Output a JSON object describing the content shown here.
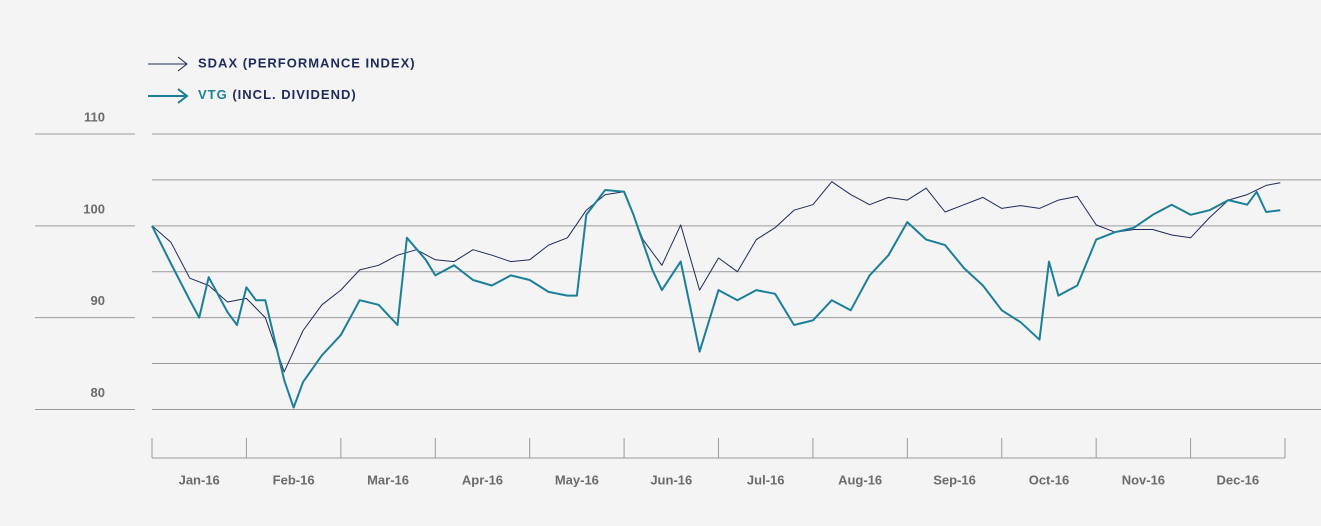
{
  "chart_data": {
    "type": "line",
    "categories": [
      "Jan-16",
      "Feb-16",
      "Mar-16",
      "Apr-16",
      "May-16",
      "Jun-16",
      "Jul-16",
      "Aug-16",
      "Sep-16",
      "Oct-16",
      "Nov-16",
      "Dec-16"
    ],
    "xlim": [
      0,
      12
    ],
    "xticks": [
      0,
      1,
      2,
      3,
      4,
      5,
      6,
      7,
      8,
      9,
      10,
      11,
      12
    ],
    "ylim": [
      77,
      110
    ],
    "yticks": [
      80,
      90,
      100,
      110
    ],
    "yminorticks": [
      85,
      95,
      105
    ],
    "grid": true,
    "series": [
      {
        "name": "SDAX (PERFORMANCE INDEX)",
        "color": "#1f2a5c",
        "x": [
          0,
          0.2,
          0.4,
          0.6,
          0.8,
          1.0,
          1.2,
          1.4,
          1.6,
          1.8,
          2.0,
          2.2,
          2.4,
          2.6,
          2.8,
          3.0,
          3.2,
          3.4,
          3.6,
          3.8,
          4.0,
          4.2,
          4.4,
          4.6,
          4.8,
          5.0,
          5.2,
          5.4,
          5.6,
          5.8,
          6.0,
          6.2,
          6.4,
          6.6,
          6.8,
          7.0,
          7.2,
          7.4,
          7.6,
          7.8,
          8.0,
          8.2,
          8.4,
          8.6,
          8.8,
          9.0,
          9.2,
          9.4,
          9.6,
          9.8,
          10.0,
          10.2,
          10.4,
          10.6,
          10.8,
          11.0,
          11.2,
          11.4,
          11.6,
          11.8,
          11.95
        ],
        "values": [
          100,
          98.2,
          94.3,
          93.5,
          91.7,
          92.1,
          90,
          84.1,
          88.6,
          91.4,
          93,
          95.2,
          95.7,
          96.8,
          97.4,
          96.3,
          96.1,
          97.4,
          96.8,
          96.1,
          96.3,
          97.9,
          98.7,
          101.7,
          103.4,
          103.7,
          98.5,
          95.7,
          100.1,
          93,
          96.5,
          95,
          98.5,
          99.8,
          101.7,
          102.3,
          104.8,
          103.4,
          102.3,
          103.1,
          102.8,
          104.1,
          101.5,
          102.3,
          103.1,
          101.9,
          102.2,
          101.9,
          102.8,
          103.2,
          100.1,
          99.3,
          99.6,
          99.6,
          99,
          98.7,
          100.9,
          102.8,
          103.4,
          104.4,
          104.7
        ]
      },
      {
        "name": "VTG (INCL. DIVIDEND)",
        "color": "#1b7f99",
        "x": [
          0,
          0.2,
          0.4,
          0.5,
          0.6,
          0.8,
          0.9,
          1.0,
          1.1,
          1.2,
          1.4,
          1.5,
          1.6,
          1.8,
          1.9,
          2.0,
          2.2,
          2.4,
          2.6,
          2.7,
          2.9,
          3.0,
          3.2,
          3.4,
          3.6,
          3.8,
          4.0,
          4.2,
          4.4,
          4.5,
          4.6,
          4.8,
          5.0,
          5.1,
          5.3,
          5.4,
          5.6,
          5.8,
          6.0,
          6.2,
          6.4,
          6.6,
          6.8,
          7.0,
          7.2,
          7.4,
          7.6,
          7.8,
          8.0,
          8.2,
          8.4,
          8.6,
          8.8,
          9.0,
          9.2,
          9.4,
          9.5,
          9.6,
          9.8,
          10.0,
          10.2,
          10.4,
          10.6,
          10.8,
          11.0,
          11.2,
          11.4,
          11.6,
          11.7,
          11.8,
          11.95
        ],
        "values": [
          100,
          95.9,
          91.9,
          90,
          94.4,
          90.6,
          89.2,
          93.3,
          91.9,
          91.9,
          83.2,
          80.2,
          83,
          85.9,
          87,
          88.1,
          91.9,
          91.4,
          89.2,
          98.7,
          96.3,
          94.6,
          95.7,
          94.1,
          93.5,
          94.6,
          94.1,
          92.8,
          92.4,
          92.4,
          101.2,
          103.9,
          103.7,
          101.2,
          95.2,
          93,
          96.1,
          86.3,
          93,
          91.9,
          93,
          92.6,
          89.2,
          89.7,
          91.9,
          90.8,
          94.6,
          96.8,
          100.4,
          98.5,
          97.9,
          95.4,
          93.5,
          90.8,
          89.5,
          87.6,
          96.1,
          92.4,
          93.5,
          98.5,
          99.3,
          99.8,
          101.2,
          102.3,
          101.2,
          101.7,
          102.8,
          102.3,
          103.7,
          101.5,
          101.7
        ]
      }
    ]
  }
}
